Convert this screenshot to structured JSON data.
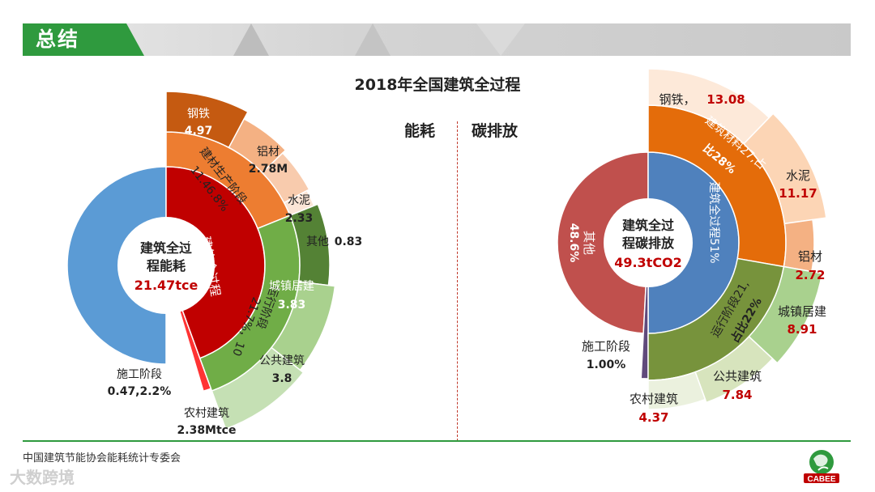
{
  "header": {
    "title": "总结"
  },
  "main_title": "2018年全国建筑全过程",
  "sub_titles": {
    "left": "能耗",
    "right": "碳排放"
  },
  "footer": {
    "source": "中国建筑节能协会能耗统计专委会",
    "watermark": "大数跨境",
    "logo_text": "CABEE"
  },
  "colors": {
    "brand_green": "#2f9a3e",
    "energy_blue": "#5b9bd5",
    "energy_red": "#c00000",
    "material_orange": "#ed7d31",
    "material_dark": "#c55a11",
    "material_light": "#f4b183",
    "material_lighter": "#f8cbad",
    "operation_green": "#70ad47",
    "operation_dark": "#548235",
    "operation_light": "#a9d18e",
    "operation_lighter": "#c5e0b4",
    "construction_red": "#ff3333",
    "carbon_other": "#c0504d",
    "carbon_blue": "#4f81bd",
    "carbon_orange": "#e46c0a",
    "carbon_peach": "#fcd5b5",
    "carbon_peach2": "#fde9d9",
    "carbon_green": "#77933c",
    "carbon_purple": "#604a7b"
  },
  "chart_data": [
    {
      "type": "sunburst",
      "title": "能耗",
      "center": {
        "line1": "建筑全过",
        "line2": "程能耗",
        "value": "21.47tce"
      },
      "inner_ring": [
        {
          "name": "建筑全过程",
          "share": "46.5%",
          "value": 46.5
        },
        {
          "name": "施工阶段",
          "share": "2.2%",
          "value": 2.2
        }
      ],
      "middle_ring": [
        {
          "name": "建材生产阶段",
          "value_label": "11.46.8%"
        },
        {
          "name": "运行阶段",
          "value_label": "21.7%，10"
        }
      ],
      "outer_ring": [
        {
          "name": "钢铁",
          "value": 4.97,
          "value_label": "4.97"
        },
        {
          "name": "铝材",
          "value": 2.78,
          "value_label": "2.78M"
        },
        {
          "name": "水泥",
          "value": 2.33,
          "value_label": "2.33"
        },
        {
          "name": "其他",
          "value": 0.83,
          "value_label": "0.83"
        },
        {
          "name": "城镇居建",
          "value": 3.83,
          "value_label": "3.83"
        },
        {
          "name": "公共建筑",
          "value": 3.8,
          "value_label": "3.8"
        },
        {
          "name": "农村建筑",
          "value": 2.38,
          "value_label": "2.38Mtce"
        }
      ],
      "construction": {
        "name": "施工阶段",
        "value_label": "0.47,2.2%"
      }
    },
    {
      "type": "sunburst",
      "title": "碳排放",
      "center": {
        "line1": "建筑全过",
        "line2": "程碳排放",
        "value": "49.3tCO2"
      },
      "inner_ring": [
        {
          "name": "其他",
          "share": "48.6%",
          "value": 48.6
        },
        {
          "name": "建筑全过程",
          "share": "51%",
          "value": 51
        },
        {
          "name": "施工阶段",
          "share": "1.00%",
          "value": 1.0
        }
      ],
      "middle_ring": [
        {
          "name": "建筑材料",
          "value_label": "27,占比28%"
        },
        {
          "name": "运行阶段",
          "value_label": "21,占比22%"
        }
      ],
      "outer_ring": [
        {
          "name": "钢铁",
          "value": 13.08,
          "value_label": "13.08"
        },
        {
          "name": "水泥",
          "value": 11.17,
          "value_label": "11.17"
        },
        {
          "name": "铝材",
          "value": 2.72,
          "value_label": "2.72"
        },
        {
          "name": "城镇居建",
          "value": 8.91,
          "value_label": "8.91"
        },
        {
          "name": "公共建筑",
          "value": 7.84,
          "value_label": "7.84"
        },
        {
          "name": "农村建筑",
          "value": 4.37,
          "value_label": "4.37"
        }
      ]
    }
  ]
}
